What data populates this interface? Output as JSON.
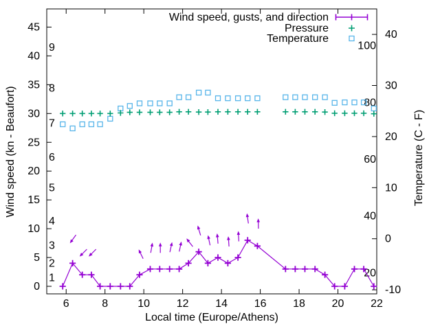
{
  "chart_data": {
    "type": "line",
    "title": "",
    "xlabel": "Local time (Europe/Athens)",
    "ylabel_left": "Wind speed (kn - Beaufort)",
    "ylabel_right": "Temperature (C - F)",
    "background": "#ffffff",
    "legend": {
      "position": "top-right-inside",
      "items": [
        {
          "label": "Wind speed, gusts, and direction",
          "color": "#9400d3",
          "marker": "errorbar-line-plus"
        },
        {
          "label": "Pressure",
          "color": "#009e73",
          "marker": "plus"
        },
        {
          "label": "Temperature",
          "color": "#56b4e9",
          "marker": "open-square"
        }
      ]
    },
    "x_axis": {
      "min": 5,
      "max": 22,
      "ticks": [
        6,
        8,
        10,
        12,
        14,
        16,
        18,
        20,
        22
      ]
    },
    "y_left_axis": {
      "unit": "kn",
      "min": 0,
      "max": 48,
      "ticks": [
        0,
        5,
        10,
        15,
        20,
        25,
        30,
        35,
        40,
        45
      ]
    },
    "y_right_axis": {
      "unit": "C",
      "ticks": [
        -10,
        0,
        10,
        20,
        30,
        40
      ]
    },
    "beaufort_inner_labels": [
      {
        "label": "1",
        "kn": 1.5
      },
      {
        "label": "2",
        "kn": 4
      },
      {
        "label": "3",
        "kn": 7.1
      },
      {
        "label": "4",
        "kn": 11.3
      },
      {
        "label": "5",
        "kn": 17.1
      },
      {
        "label": "6",
        "kn": 22.4
      },
      {
        "label": "7",
        "kn": 28.3
      },
      {
        "label": "8",
        "kn": 34.4
      },
      {
        "label": "9",
        "kn": 41.5
      }
    ],
    "fahrenheit_inner_labels": [
      {
        "label": "20",
        "f": 20
      },
      {
        "label": "40",
        "f": 40
      },
      {
        "label": "60",
        "f": 60
      },
      {
        "label": "80",
        "f": 80
      },
      {
        "label": "100",
        "f": 100
      }
    ],
    "x": [
      5.82,
      6.33,
      6.83,
      7.3,
      7.75,
      8.27,
      8.8,
      9.28,
      9.78,
      10.33,
      10.82,
      11.33,
      11.82,
      12.3,
      12.83,
      13.3,
      13.82,
      14.33,
      14.85,
      15.35,
      15.85,
      17.3,
      17.8,
      18.3,
      18.82,
      19.33,
      19.83,
      20.35,
      20.85,
      21.33,
      21.85
    ],
    "series": [
      {
        "name": "Wind speed (kn)",
        "style": "line-plus",
        "color": "#9400d3",
        "values": [
          0,
          4,
          2,
          2,
          0,
          0,
          0,
          0,
          2,
          3,
          3,
          3,
          3,
          4,
          6,
          4,
          5,
          4,
          5,
          8,
          7,
          3,
          3,
          3,
          3,
          2,
          0,
          0,
          3,
          3,
          0
        ]
      },
      {
        "name": "Pressure (inHg, on left axis)",
        "style": "plus",
        "color": "#009e73",
        "values": [
          30.0,
          30.0,
          30.0,
          30.0,
          30.0,
          30.0,
          30.1,
          30.2,
          30.2,
          30.2,
          30.2,
          30.2,
          30.3,
          30.3,
          30.25,
          30.25,
          30.3,
          30.3,
          30.3,
          30.3,
          30.3,
          30.3,
          30.3,
          30.3,
          30.3,
          30.25,
          30.05,
          30.05,
          30.05,
          30.05,
          29.95
        ]
      },
      {
        "name": "Temperature (C)",
        "style": "open-square",
        "color": "#56b4e9",
        "values": [
          22.4,
          21.6,
          22.4,
          22.4,
          22.4,
          23.5,
          25.5,
          26.0,
          26.5,
          26.5,
          26.5,
          26.5,
          27.7,
          27.7,
          28.6,
          28.6,
          27.5,
          27.5,
          27.5,
          27.5,
          27.5,
          27.7,
          27.7,
          27.7,
          27.7,
          27.7,
          26.6,
          26.7,
          26.7,
          26.7,
          25.5
        ]
      }
    ],
    "wind_direction_arrows": [
      {
        "t": 6.35,
        "kn": 8.2,
        "deg": 216
      },
      {
        "t": 6.88,
        "kn": 5.8,
        "deg": 225
      },
      {
        "t": 7.35,
        "kn": 5.8,
        "deg": 225
      },
      {
        "t": 9.85,
        "kn": 5.6,
        "deg": 334
      },
      {
        "t": 10.4,
        "kn": 6.7,
        "deg": 10
      },
      {
        "t": 10.85,
        "kn": 6.7,
        "deg": 0
      },
      {
        "t": 11.4,
        "kn": 6.8,
        "deg": 12
      },
      {
        "t": 11.88,
        "kn": 6.9,
        "deg": 12
      },
      {
        "t": 12.36,
        "kn": 7.6,
        "deg": 322
      },
      {
        "t": 12.85,
        "kn": 9.7,
        "deg": 343
      },
      {
        "t": 13.36,
        "kn": 8.0,
        "deg": 348
      },
      {
        "t": 13.8,
        "kn": 8.3,
        "deg": 355
      },
      {
        "t": 14.37,
        "kn": 7.8,
        "deg": 356
      },
      {
        "t": 14.88,
        "kn": 8.7,
        "deg": 357
      },
      {
        "t": 15.35,
        "kn": 11.8,
        "deg": 352
      },
      {
        "t": 15.9,
        "kn": 10.9,
        "deg": 359
      }
    ],
    "grid": false
  }
}
